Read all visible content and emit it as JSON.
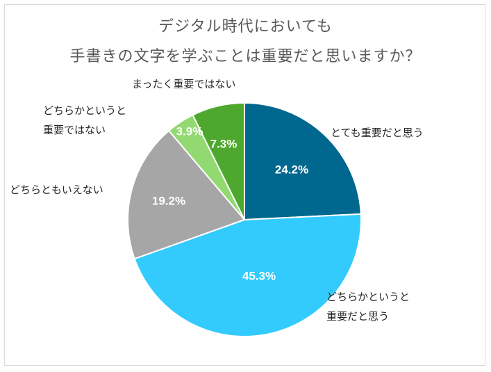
{
  "chart_data": {
    "type": "pie",
    "title_lines": [
      "デジタル時代においても",
      "手書きの文字を学ぶことは重要だと思いますか？"
    ],
    "slices": [
      {
        "label_lines": [
          "とても重要だと思う"
        ],
        "value": 24.2,
        "value_label": "24.2%",
        "color": "#00678f"
      },
      {
        "label_lines": [
          "どちらかというと",
          "重要だと思う"
        ],
        "value": 45.3,
        "value_label": "45.3%",
        "color": "#33cbfd"
      },
      {
        "label_lines": [
          "どちらともいえない"
        ],
        "value": 19.2,
        "value_label": "19.2%",
        "color": "#a6a6a6"
      },
      {
        "label_lines": [
          "どちらかというと",
          "重要ではない"
        ],
        "value": 3.9,
        "value_label": "3.9%",
        "color": "#92d972"
      },
      {
        "label_lines": [
          "まったく重要ではない"
        ],
        "value": 7.3,
        "value_label": "7.3%",
        "color": "#4ea82e"
      }
    ]
  }
}
